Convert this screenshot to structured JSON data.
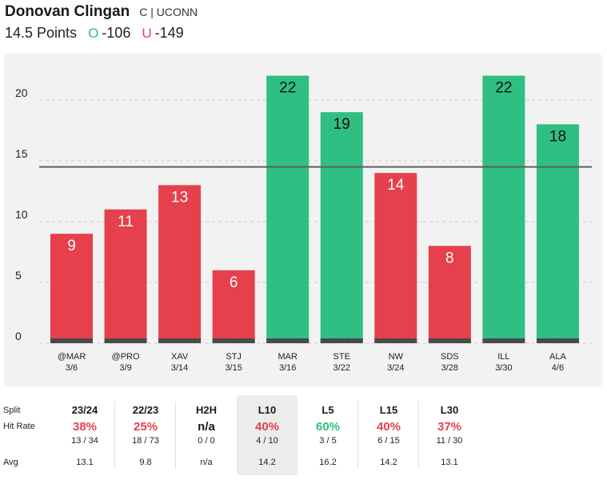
{
  "header": {
    "player_name": "Donovan Clingan",
    "player_meta": "C | UCONN",
    "line_label": "14.5 Points",
    "over_icon": "O",
    "over_odds": "-106",
    "under_icon": "U",
    "under_odds": "-149"
  },
  "colors": {
    "over": "#2fbf82",
    "under": "#e5404b",
    "line": "#5f5f5f",
    "base": "#4a4a4a"
  },
  "chart_data": {
    "type": "bar",
    "categories": [
      "@MAR",
      "@PRO",
      "XAV",
      "STJ",
      "MAR",
      "STE",
      "NW",
      "SDS",
      "ILL",
      "ALA"
    ],
    "dates": [
      "3/6",
      "3/9",
      "3/14",
      "3/15",
      "3/16",
      "3/22",
      "3/24",
      "3/28",
      "3/30",
      "4/6"
    ],
    "values": [
      9,
      11,
      13,
      6,
      22,
      19,
      14,
      8,
      22,
      18
    ],
    "line": 14.5,
    "yticks": [
      0,
      5,
      10,
      15,
      20
    ],
    "ylim": [
      0,
      23.5
    ],
    "grid": true
  },
  "stats": {
    "labels": {
      "split": "Split",
      "hit_rate": "Hit Rate",
      "avg": "Avg"
    },
    "columns": [
      {
        "split": "23/24",
        "pct": "38%",
        "frac": "13 / 34",
        "avg": "13.1",
        "status": "under"
      },
      {
        "split": "22/23",
        "pct": "25%",
        "frac": "18 / 73",
        "avg": "9.8",
        "status": "under"
      },
      {
        "split": "H2H",
        "pct": "n/a",
        "frac": "0 / 0",
        "avg": "n/a",
        "status": "neutral"
      },
      {
        "split": "L10",
        "pct": "40%",
        "frac": "4 / 10",
        "avg": "14.2",
        "status": "under",
        "selected": true
      },
      {
        "split": "L5",
        "pct": "60%",
        "frac": "3 / 5",
        "avg": "16.2",
        "status": "over"
      },
      {
        "split": "L15",
        "pct": "40%",
        "frac": "6 / 15",
        "avg": "14.2",
        "status": "under"
      },
      {
        "split": "L30",
        "pct": "37%",
        "frac": "11 / 30",
        "avg": "13.1",
        "status": "under"
      }
    ]
  }
}
